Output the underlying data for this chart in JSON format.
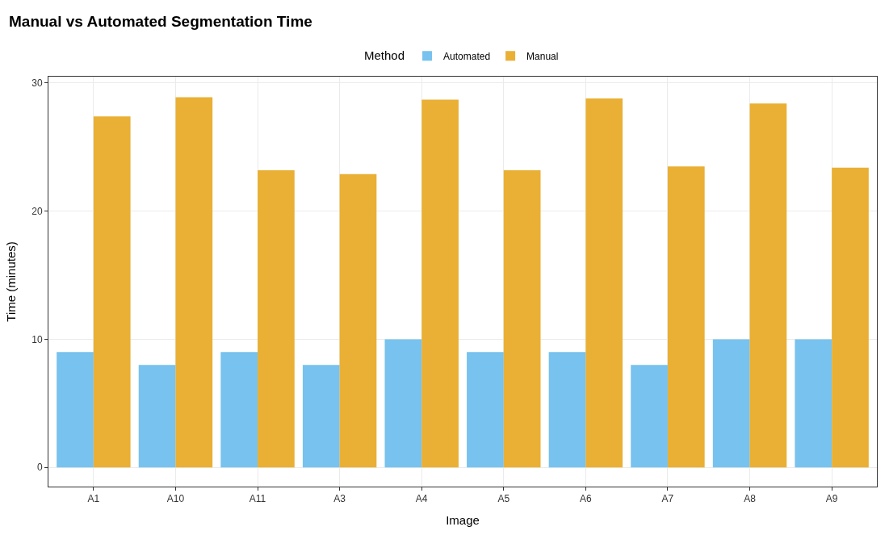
{
  "chart_data": {
    "type": "bar",
    "title": "Manual vs Automated Segmentation Time",
    "xlabel": "Image",
    "ylabel": "Time (minutes)",
    "legend_title": "Method",
    "categories": [
      "A1",
      "A10",
      "A11",
      "A3",
      "A4",
      "A5",
      "A6",
      "A7",
      "A8",
      "A9"
    ],
    "series": [
      {
        "name": "Automated",
        "color": "#77c2ee",
        "values": [
          9,
          8,
          9,
          8,
          10,
          9,
          9,
          8,
          10,
          10
        ]
      },
      {
        "name": "Manual",
        "color": "#e9b035",
        "values": [
          27.4,
          28.9,
          23.2,
          22.9,
          28.7,
          23.2,
          28.8,
          23.5,
          28.4,
          23.4
        ]
      }
    ],
    "ylim": [
      -1.5,
      30.5
    ],
    "yticks": [
      0,
      10,
      20,
      30
    ],
    "grid": true,
    "legend": "top"
  }
}
